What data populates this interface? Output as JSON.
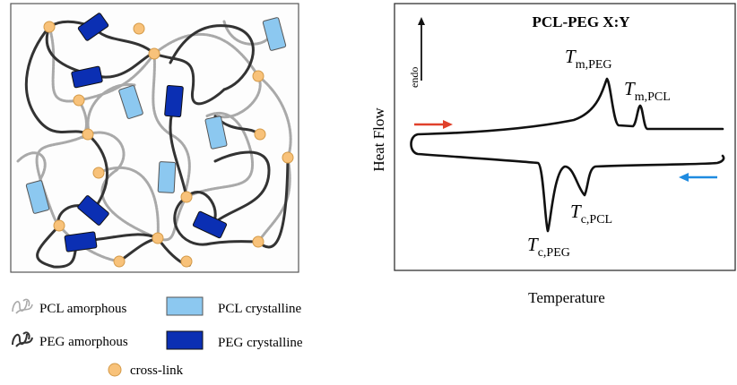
{
  "network": {
    "legend": {
      "pcl_amorphous": "PCL amorphous",
      "peg_amorphous": "PEG amorphous",
      "pcl_crystalline": "PCL crystalline",
      "peg_crystalline": "PEG crystalline",
      "cross_link": "cross-link"
    },
    "colors": {
      "pcl_crystalline": "#8cc8f0",
      "peg_crystalline": "#0b2fb3",
      "cross_link": "#f8c27a",
      "peg_chain": "#333333",
      "pcl_chain": "#a9a9a9"
    }
  },
  "dsc": {
    "title": "PCL-PEG X:Y",
    "endo_label": "endo",
    "ylabel": "Heat Flow",
    "xlabel": "Temperature",
    "peaks": {
      "tm_peg": {
        "symbol": "T",
        "sub": "m,PEG"
      },
      "tm_pcl": {
        "symbol": "T",
        "sub": "m,PCL"
      },
      "tc_peg": {
        "symbol": "T",
        "sub": "c,PEG"
      },
      "tc_pcl": {
        "symbol": "T",
        "sub": "c,PCL"
      }
    },
    "colors": {
      "heating_arrow": "#e0412b",
      "cooling_arrow": "#1f8be0"
    }
  }
}
